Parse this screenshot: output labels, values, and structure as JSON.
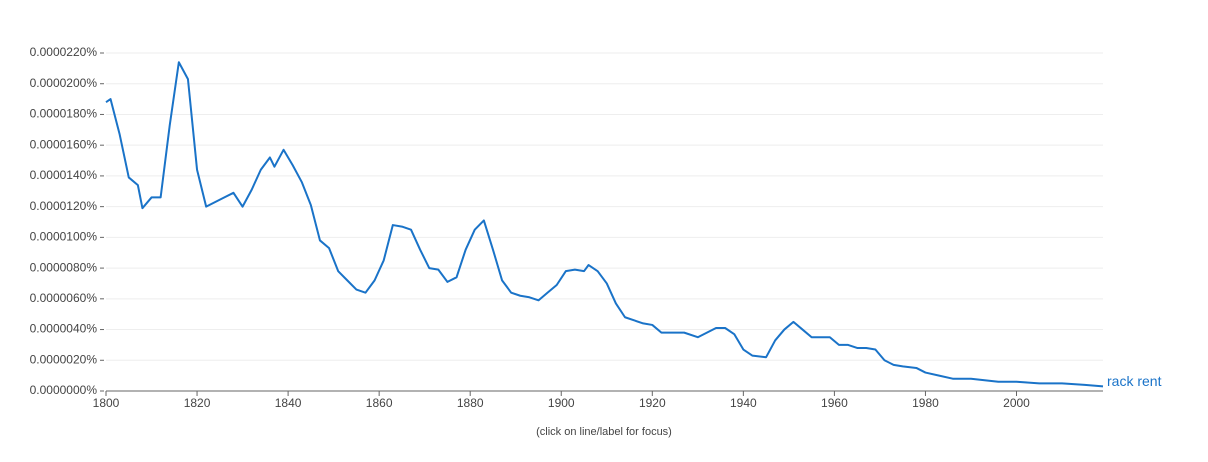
{
  "chart_data": {
    "type": "line",
    "annotation": "(click on line/label for focus)",
    "x": [
      1800,
      1801,
      1803,
      1805,
      1807,
      1808,
      1810,
      1812,
      1814,
      1816,
      1818,
      1820,
      1822,
      1824,
      1826,
      1828,
      1830,
      1832,
      1834,
      1836,
      1837,
      1839,
      1841,
      1843,
      1845,
      1847,
      1849,
      1851,
      1853,
      1855,
      1857,
      1859,
      1861,
      1863,
      1865,
      1867,
      1869,
      1871,
      1873,
      1875,
      1877,
      1879,
      1881,
      1883,
      1885,
      1887,
      1889,
      1891,
      1893,
      1895,
      1897,
      1899,
      1901,
      1903,
      1905,
      1906,
      1908,
      1910,
      1912,
      1914,
      1916,
      1918,
      1920,
      1922,
      1924,
      1927,
      1930,
      1932,
      1934,
      1936,
      1938,
      1940,
      1942,
      1945,
      1947,
      1949,
      1951,
      1953,
      1955,
      1957,
      1959,
      1961,
      1963,
      1965,
      1967,
      1969,
      1971,
      1973,
      1975,
      1978,
      1980,
      1983,
      1986,
      1990,
      1993,
      1996,
      2000,
      2005,
      2010,
      2015,
      2019
    ],
    "series": [
      {
        "name": "rack rent",
        "color": "#1a73c8",
        "values": [
          1.88e-05,
          1.9e-05,
          1.67e-05,
          1.39e-05,
          1.34e-05,
          1.19e-05,
          1.26e-05,
          1.26e-05,
          1.73e-05,
          2.14e-05,
          2.03e-05,
          1.44e-05,
          1.2e-05,
          1.23e-05,
          1.26e-05,
          1.29e-05,
          1.2e-05,
          1.31e-05,
          1.44e-05,
          1.52e-05,
          1.46e-05,
          1.57e-05,
          1.47e-05,
          1.36e-05,
          1.21e-05,
          9.8e-06,
          9.3e-06,
          7.8e-06,
          7.2e-06,
          6.6e-06,
          6.4e-06,
          7.2e-06,
          8.5e-06,
          1.08e-05,
          1.07e-05,
          1.05e-05,
          9.2e-06,
          8e-06,
          7.9e-06,
          7.1e-06,
          7.4e-06,
          9.2e-06,
          1.05e-05,
          1.11e-05,
          9.2e-06,
          7.2e-06,
          6.4e-06,
          6.2e-06,
          6.1e-06,
          5.9e-06,
          6.4e-06,
          6.9e-06,
          7.8e-06,
          7.9e-06,
          7.8e-06,
          8.2e-06,
          7.8e-06,
          7e-06,
          5.7e-06,
          4.8e-06,
          4.6e-06,
          4.4e-06,
          4.3e-06,
          3.8e-06,
          3.8e-06,
          3.8e-06,
          3.5e-06,
          3.8e-06,
          4.1e-06,
          4.1e-06,
          3.7e-06,
          2.7e-06,
          2.3e-06,
          2.2e-06,
          3.3e-06,
          4e-06,
          4.5e-06,
          4e-06,
          3.5e-06,
          3.5e-06,
          3.5e-06,
          3e-06,
          3e-06,
          2.8e-06,
          2.8e-06,
          2.7e-06,
          2e-06,
          1.7e-06,
          1.6e-06,
          1.5e-06,
          1.2e-06,
          1e-06,
          8e-07,
          8e-07,
          7e-07,
          6e-07,
          6e-07,
          5e-07,
          5e-07,
          4e-07,
          3e-07
        ]
      }
    ],
    "xlim": [
      1800,
      2019
    ],
    "xticks": [
      1800,
      1820,
      1840,
      1860,
      1880,
      1900,
      1920,
      1940,
      1960,
      1980,
      2000
    ],
    "ylim": [
      0,
      2.2e-05
    ],
    "yticks": [
      {
        "value": 0,
        "label": "0.0000000%"
      },
      {
        "value": 2e-06,
        "label": "0.0000020%"
      },
      {
        "value": 4e-06,
        "label": "0.0000040%"
      },
      {
        "value": 6e-06,
        "label": "0.0000060%"
      },
      {
        "value": 8e-06,
        "label": "0.0000080%"
      },
      {
        "value": 1e-05,
        "label": "0.0000100%"
      },
      {
        "value": 1.2e-05,
        "label": "0.0000120%"
      },
      {
        "value": 1.4e-05,
        "label": "0.0000140%"
      },
      {
        "value": 1.6e-05,
        "label": "0.0000160%"
      },
      {
        "value": 1.8e-05,
        "label": "0.0000180%"
      },
      {
        "value": 2e-05,
        "label": "0.0000200%"
      },
      {
        "value": 2.2e-05,
        "label": "0.0000220%"
      }
    ],
    "grid": true
  }
}
